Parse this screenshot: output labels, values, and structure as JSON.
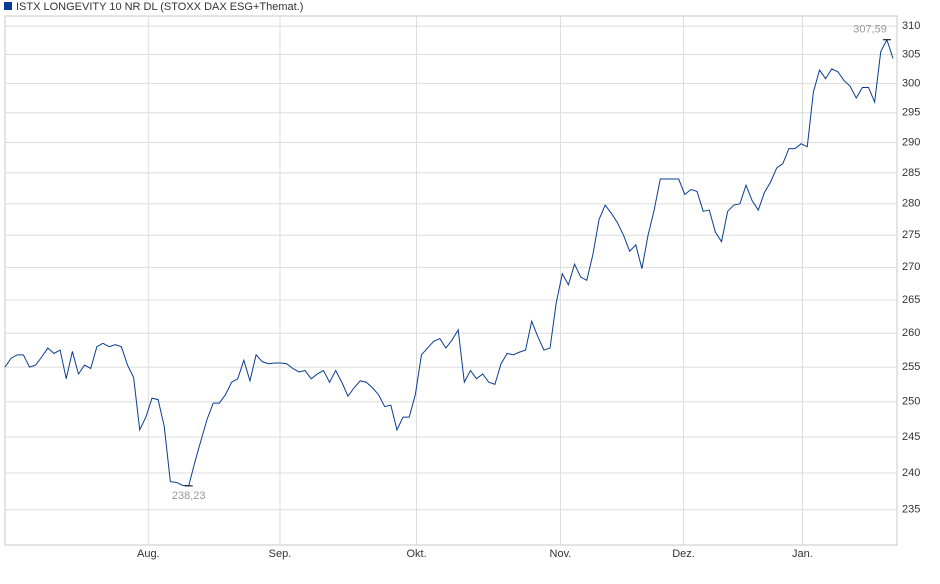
{
  "chart_data": {
    "type": "line",
    "series": [
      {
        "name": "ISTX LONGEVITY 10 NR DL (STOXX DAX ESG+Themat.)",
        "color": "#0a3d91",
        "values": [
          255,
          256.3,
          256.8,
          256.8,
          255,
          255.3,
          256.5,
          257.8,
          257,
          257.5,
          253.3,
          257.3,
          254,
          255.3,
          254.8,
          258,
          258.5,
          258,
          258.3,
          258,
          255.3,
          253.5,
          246,
          247.8,
          250.5,
          250.3,
          246.5,
          238.8,
          238.7,
          238.3,
          238.23,
          241.5,
          244.5,
          247.5,
          249.8,
          249.8,
          251,
          252.8,
          253.3,
          256,
          253,
          256.8,
          255.8,
          255.5,
          255.6,
          255.6,
          255.5,
          254.8,
          254.3,
          254.5,
          253.3,
          254,
          254.5,
          252.8,
          254.5,
          252.8,
          250.8,
          252,
          253,
          252.8,
          252,
          251,
          249.3,
          249.5,
          246,
          247.8,
          247.8,
          251,
          256.8,
          257.8,
          258.8,
          259.2,
          257.8,
          259,
          260.5,
          252.8,
          254.5,
          253.3,
          254,
          252.8,
          252.5,
          255.5,
          257,
          256.8,
          257.2,
          257.5,
          261.8,
          259.5,
          257.5,
          257.8,
          264.5,
          269,
          267.3,
          270.5,
          268.5,
          268,
          272,
          277.5,
          279.8,
          278.5,
          277,
          275,
          272.5,
          273.5,
          269.8,
          275,
          279,
          284,
          284,
          284,
          284,
          281.5,
          282.3,
          282,
          278.8,
          279,
          275.5,
          274,
          278.8,
          279.8,
          280,
          283,
          280.5,
          279,
          281.8,
          283.5,
          285.8,
          286.5,
          289,
          289,
          289.8,
          289.3,
          298.5,
          302.3,
          300.8,
          302.5,
          302,
          300.5,
          299.5,
          297.5,
          299.3,
          299.3,
          296.8,
          305.5,
          307.59,
          304.3
        ]
      }
    ],
    "xlim": [
      0,
      145
    ],
    "xticks": [
      {
        "value": 23.4,
        "label": "Aug."
      },
      {
        "value": 44.9,
        "label": "Sep."
      },
      {
        "value": 67.2,
        "label": "Okt."
      },
      {
        "value": 90.7,
        "label": "Nov."
      },
      {
        "value": 110.8,
        "label": "Dez."
      },
      {
        "value": 130.2,
        "label": "Jan."
      }
    ],
    "ylim": [
      230.3,
      311.8
    ],
    "yticks": [
      235,
      240,
      245,
      250,
      255,
      260,
      265,
      270,
      275,
      280,
      285,
      290,
      295,
      300,
      305,
      310
    ],
    "log_scale": true,
    "grid": true,
    "annotations": [
      {
        "label": "307,59",
        "value": 307.59
      },
      {
        "label": "238,23",
        "value": 238.23
      }
    ]
  }
}
